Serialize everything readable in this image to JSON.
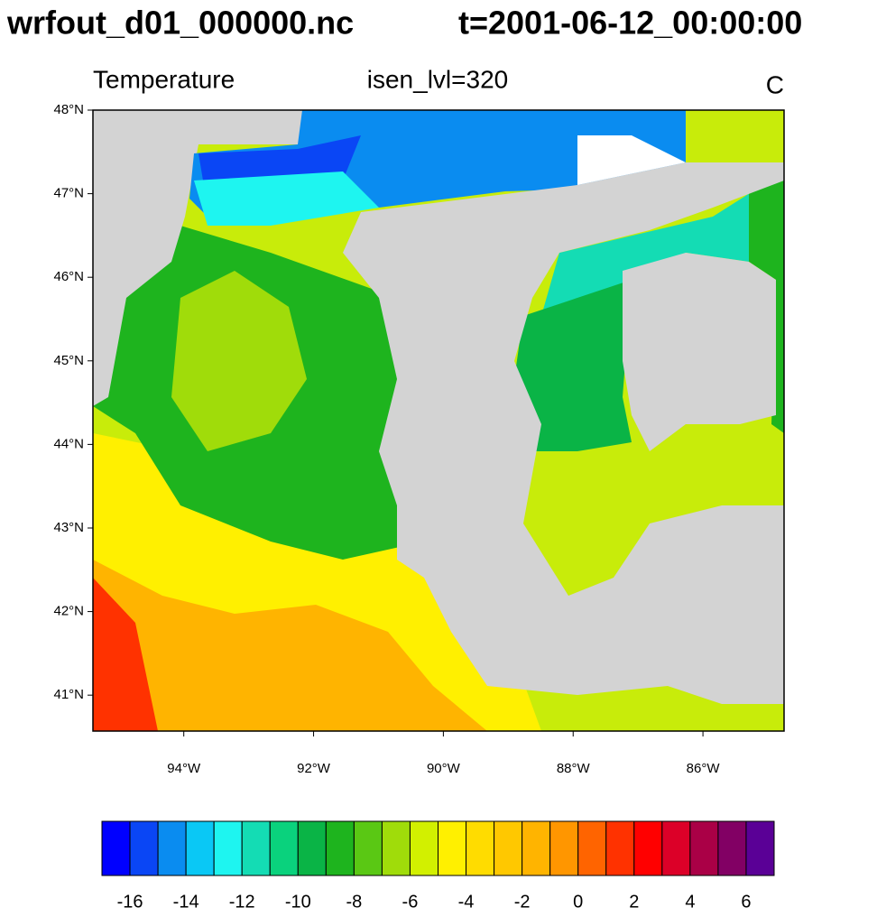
{
  "header": {
    "file": "wrfout_d01_000000.nc",
    "time": "t=2001-06-12_00:00:00"
  },
  "plot": {
    "left_title": "Temperature",
    "center_title": "isen_lvl=320",
    "units": "C",
    "ylim": [
      40.57,
      48
    ],
    "xlim": [
      -95.4,
      -84.75
    ],
    "yticks": [
      {
        "value": 41,
        "label": "41°N"
      },
      {
        "value": 42,
        "label": "42°N"
      },
      {
        "value": 43,
        "label": "43°N"
      },
      {
        "value": 44,
        "label": "44°N"
      },
      {
        "value": 45,
        "label": "45°N"
      },
      {
        "value": 46,
        "label": "46°N"
      },
      {
        "value": 47,
        "label": "47°N"
      },
      {
        "value": 48,
        "label": "48°N"
      }
    ],
    "xticks": [
      {
        "value": -94,
        "label": "94°W"
      },
      {
        "value": -92,
        "label": "92°W"
      },
      {
        "value": -90,
        "label": "90°W"
      },
      {
        "value": -88,
        "label": "88°W"
      },
      {
        "value": -86,
        "label": "86°W"
      }
    ]
  },
  "colorbar": {
    "levels": [
      -16,
      -15,
      -14,
      -13,
      -12,
      -11,
      -10,
      -9,
      -8,
      -7,
      -6,
      -5,
      -4,
      -3,
      -2,
      -1,
      0,
      1,
      2,
      3,
      4,
      5,
      6
    ],
    "colors": [
      "#0000ff",
      "#0a46f5",
      "#0a8cf0",
      "#0ac8f5",
      "#1ef5f0",
      "#14dcb4",
      "#0ad27d",
      "#0ab446",
      "#1eb41e",
      "#5ac814",
      "#a0dc0a",
      "#d2f000",
      "#fff000",
      "#ffdc00",
      "#ffc800",
      "#ffb400",
      "#ff9600",
      "#ff6400",
      "#ff3200",
      "#ff0000",
      "#dc0028",
      "#aa0046",
      "#820064",
      "#5a0096"
    ],
    "ticks": [
      -16,
      -14,
      -12,
      -10,
      -8,
      -6,
      -4,
      -2,
      0,
      2,
      4,
      6
    ]
  }
}
